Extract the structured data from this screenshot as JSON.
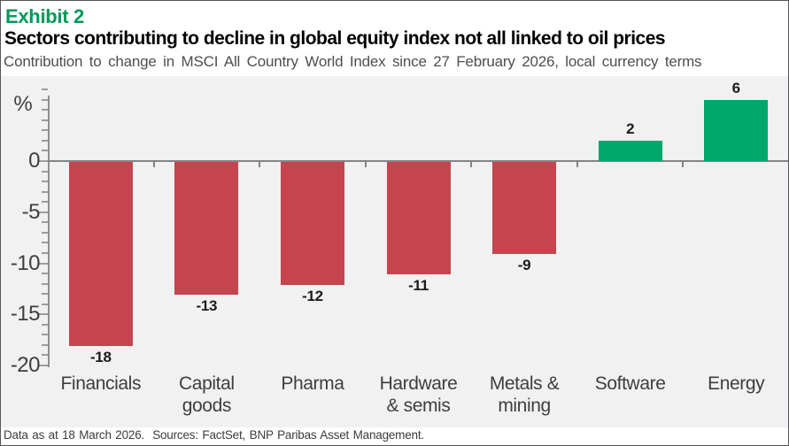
{
  "header": {
    "exhibit_label": "Exhibit 2",
    "title": "Sectors contributing to decline in global equity index not all linked to oil prices",
    "subtitle": "Contribution to change in MSCI All Country World Index since 27 February 2026, local currency terms"
  },
  "chart_data": {
    "type": "bar",
    "title": "Sectors contributing to decline in global equity index not all linked to oil prices",
    "subtitle": "Contribution to change in MSCI All Country World Index since 27 February 2026, local currency terms",
    "categories": [
      "Financials",
      "Capital goods",
      "Pharma",
      "Hardware & semis",
      "Metals & mining",
      "Software",
      "Energy"
    ],
    "category_label_lines": [
      [
        "Financials"
      ],
      [
        "Capital",
        "goods"
      ],
      [
        "Pharma"
      ],
      [
        "Hardware",
        "& semis"
      ],
      [
        "Metals &",
        "mining"
      ],
      [
        "Software"
      ],
      [
        "Energy"
      ]
    ],
    "values": [
      -18,
      -13,
      -12,
      -11,
      -9,
      2,
      6
    ],
    "value_labels": [
      "-18",
      "-13",
      "-12",
      "-11",
      "-9",
      "2",
      "6"
    ],
    "unit_label": "%",
    "ylabel": "%",
    "xlabel": "",
    "y_major_ticks": [
      0,
      -5,
      -10,
      -15,
      -20
    ],
    "y_minor_tick_step": 1,
    "ylim": [
      -20,
      6.4
    ],
    "grid": false,
    "legend": "none",
    "colors": {
      "negative_bar": "#c4454e",
      "positive_bar": "#00a76d",
      "plot_background": "#f1f1f2",
      "axis": "#8f8f8f",
      "accent_green_text": "#009a58"
    }
  },
  "footer": {
    "note": "Data as at 18 March 2026.  Sources: FactSet, BNP Paribas Asset Management."
  }
}
